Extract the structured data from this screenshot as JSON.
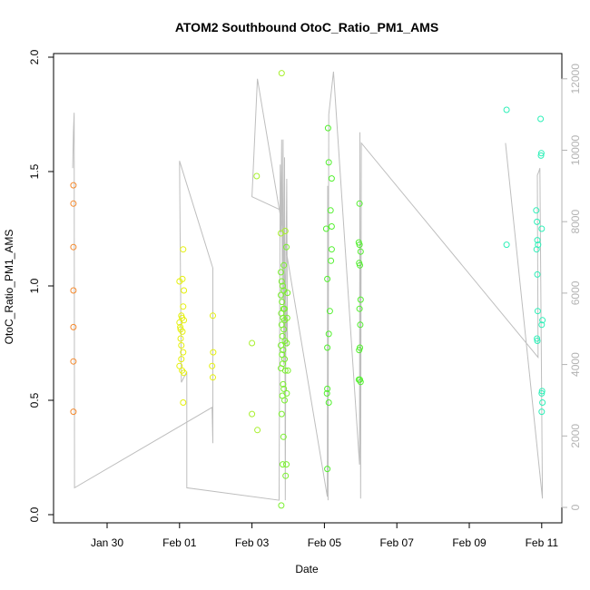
{
  "chart_data": {
    "type": "scatter",
    "title": "ATOM2 Southbound OtoC_Ratio_PM1_AMS",
    "xlabel": "Date",
    "ylabel": "OtoC_Ratio_PM1_AMS",
    "x_unit": "day",
    "x_reference_date": "2017-01-30",
    "x_ticks": [
      {
        "x": 0,
        "label": "Jan 30"
      },
      {
        "x": 2,
        "label": "Feb 01"
      },
      {
        "x": 4,
        "label": "Feb 03"
      },
      {
        "x": 6,
        "label": "Feb 05"
      },
      {
        "x": 8,
        "label": "Feb 07"
      },
      {
        "x": 10,
        "label": "Feb 09"
      },
      {
        "x": 12,
        "label": "Feb 11"
      }
    ],
    "xlim": [
      -1.44,
      12.56
    ],
    "ylim": [
      -0.02,
      2.0
    ],
    "y_ticks": [
      0.0,
      0.5,
      1.0,
      1.5,
      2.0
    ],
    "y_tick_labels": [
      "0.0",
      "0.5",
      "1.0",
      "1.5",
      "2.0"
    ],
    "right_axis": {
      "lim": [
        -190,
        12400
      ],
      "ticks": [
        0,
        2000,
        4000,
        6000,
        8000,
        10000,
        12000
      ],
      "tick_labels": [
        "0",
        "2000",
        "4000",
        "6000",
        "8000",
        "10000",
        "12000"
      ],
      "color": "#b3b3b3"
    },
    "grid": false,
    "series": [
      {
        "color": "#f58a2e",
        "points": [
          {
            "x": -0.93,
            "y": 1.44
          },
          {
            "x": -0.93,
            "y": 1.36
          },
          {
            "x": -0.93,
            "y": 1.17
          },
          {
            "x": -0.93,
            "y": 0.98
          },
          {
            "x": -0.93,
            "y": 0.82
          },
          {
            "x": -0.93,
            "y": 0.67
          },
          {
            "x": -0.93,
            "y": 0.45
          }
        ]
      },
      {
        "color": "#e5f00e",
        "points": [
          {
            "x": 2.0,
            "y": 1.02
          },
          {
            "x": 2.08,
            "y": 1.03
          },
          {
            "x": 2.1,
            "y": 1.16
          },
          {
            "x": 2.12,
            "y": 0.98
          },
          {
            "x": 2.1,
            "y": 0.91
          },
          {
            "x": 2.05,
            "y": 0.87
          },
          {
            "x": 2.07,
            "y": 0.86
          },
          {
            "x": 2.12,
            "y": 0.85
          },
          {
            "x": 2.0,
            "y": 0.84
          },
          {
            "x": 2.02,
            "y": 0.82
          },
          {
            "x": 2.03,
            "y": 0.81
          },
          {
            "x": 2.08,
            "y": 0.8
          },
          {
            "x": 2.03,
            "y": 0.77
          },
          {
            "x": 2.05,
            "y": 0.74
          },
          {
            "x": 2.1,
            "y": 0.71
          },
          {
            "x": 2.05,
            "y": 0.68
          },
          {
            "x": 2.0,
            "y": 0.65
          },
          {
            "x": 2.07,
            "y": 0.63
          },
          {
            "x": 2.12,
            "y": 0.62
          },
          {
            "x": 2.1,
            "y": 0.49
          },
          {
            "x": 2.92,
            "y": 0.87
          },
          {
            "x": 2.93,
            "y": 0.71
          },
          {
            "x": 2.9,
            "y": 0.65
          },
          {
            "x": 2.92,
            "y": 0.6
          }
        ]
      },
      {
        "color": "#a8f02e",
        "points": [
          {
            "x": 4.0,
            "y": 0.75
          },
          {
            "x": 4.0,
            "y": 0.44
          },
          {
            "x": 4.13,
            "y": 1.48
          },
          {
            "x": 4.15,
            "y": 0.37
          },
          {
            "x": 4.82,
            "y": 1.93
          },
          {
            "x": 4.8,
            "y": 1.23
          },
          {
            "x": 4.92,
            "y": 1.24
          }
        ]
      },
      {
        "color": "#7af02e",
        "points": [
          {
            "x": 4.8,
            "y": 1.06
          },
          {
            "x": 4.82,
            "y": 1.02
          },
          {
            "x": 4.85,
            "y": 1.0
          },
          {
            "x": 4.88,
            "y": 0.98
          },
          {
            "x": 4.8,
            "y": 0.96
          },
          {
            "x": 4.83,
            "y": 0.93
          },
          {
            "x": 4.87,
            "y": 0.9
          },
          {
            "x": 4.81,
            "y": 0.88
          },
          {
            "x": 4.86,
            "y": 0.86
          },
          {
            "x": 4.9,
            "y": 0.85
          },
          {
            "x": 4.82,
            "y": 0.83
          },
          {
            "x": 4.88,
            "y": 0.81
          },
          {
            "x": 4.84,
            "y": 0.78
          },
          {
            "x": 4.91,
            "y": 0.76
          },
          {
            "x": 4.8,
            "y": 0.74
          },
          {
            "x": 4.86,
            "y": 0.72
          },
          {
            "x": 4.83,
            "y": 0.7
          },
          {
            "x": 4.9,
            "y": 0.68
          },
          {
            "x": 4.85,
            "y": 0.66
          },
          {
            "x": 4.8,
            "y": 0.64
          },
          {
            "x": 4.92,
            "y": 0.63
          },
          {
            "x": 4.86,
            "y": 0.57
          },
          {
            "x": 4.88,
            "y": 0.55
          },
          {
            "x": 4.84,
            "y": 0.52
          },
          {
            "x": 4.9,
            "y": 0.5
          },
          {
            "x": 4.82,
            "y": 0.44
          },
          {
            "x": 4.87,
            "y": 0.34
          },
          {
            "x": 4.85,
            "y": 0.22
          },
          {
            "x": 4.95,
            "y": 0.22
          },
          {
            "x": 4.93,
            "y": 0.17
          },
          {
            "x": 4.81,
            "y": 0.04
          },
          {
            "x": 4.95,
            "y": 1.17
          },
          {
            "x": 4.98,
            "y": 0.97
          },
          {
            "x": 4.97,
            "y": 0.86
          },
          {
            "x": 4.96,
            "y": 0.75
          },
          {
            "x": 4.99,
            "y": 0.63
          },
          {
            "x": 4.96,
            "y": 0.53
          },
          {
            "x": 4.88,
            "y": 1.09
          },
          {
            "x": 4.9,
            "y": 0.9
          }
        ]
      },
      {
        "color": "#52f02e",
        "points": [
          {
            "x": 6.1,
            "y": 1.69
          },
          {
            "x": 6.12,
            "y": 1.54
          },
          {
            "x": 6.2,
            "y": 1.47
          },
          {
            "x": 6.17,
            "y": 1.33
          },
          {
            "x": 6.05,
            "y": 1.25
          },
          {
            "x": 6.2,
            "y": 1.26
          },
          {
            "x": 6.2,
            "y": 1.16
          },
          {
            "x": 6.18,
            "y": 1.11
          },
          {
            "x": 6.08,
            "y": 1.03
          },
          {
            "x": 6.15,
            "y": 0.89
          },
          {
            "x": 6.12,
            "y": 0.79
          },
          {
            "x": 6.08,
            "y": 0.73
          },
          {
            "x": 6.08,
            "y": 0.55
          },
          {
            "x": 6.07,
            "y": 0.53
          },
          {
            "x": 6.12,
            "y": 0.49
          },
          {
            "x": 6.08,
            "y": 0.2
          },
          {
            "x": 6.97,
            "y": 1.36
          },
          {
            "x": 6.95,
            "y": 1.19
          },
          {
            "x": 6.97,
            "y": 1.18
          },
          {
            "x": 7.0,
            "y": 1.15
          },
          {
            "x": 6.96,
            "y": 1.1
          },
          {
            "x": 6.98,
            "y": 1.09
          },
          {
            "x": 7.0,
            "y": 0.94
          },
          {
            "x": 6.97,
            "y": 0.9
          },
          {
            "x": 6.99,
            "y": 0.83
          },
          {
            "x": 6.98,
            "y": 0.73
          },
          {
            "x": 6.96,
            "y": 0.72
          },
          {
            "x": 6.95,
            "y": 0.59
          },
          {
            "x": 6.98,
            "y": 0.59
          },
          {
            "x": 7.0,
            "y": 0.58
          }
        ]
      },
      {
        "color": "#2ef0b8",
        "points": [
          {
            "x": 11.03,
            "y": 1.77
          },
          {
            "x": 11.03,
            "y": 1.18
          },
          {
            "x": 11.97,
            "y": 1.73
          },
          {
            "x": 11.99,
            "y": 1.58
          },
          {
            "x": 11.98,
            "y": 1.57
          },
          {
            "x": 11.85,
            "y": 1.33
          },
          {
            "x": 11.87,
            "y": 1.28
          },
          {
            "x": 12.0,
            "y": 1.25
          },
          {
            "x": 11.88,
            "y": 1.2
          },
          {
            "x": 11.9,
            "y": 1.18
          },
          {
            "x": 11.86,
            "y": 1.16
          },
          {
            "x": 11.88,
            "y": 1.05
          },
          {
            "x": 11.89,
            "y": 0.89
          },
          {
            "x": 12.02,
            "y": 0.85
          },
          {
            "x": 12.0,
            "y": 0.83
          },
          {
            "x": 11.87,
            "y": 0.77
          },
          {
            "x": 11.88,
            "y": 0.76
          },
          {
            "x": 12.01,
            "y": 0.54
          },
          {
            "x": 12.0,
            "y": 0.53
          },
          {
            "x": 12.02,
            "y": 0.49
          },
          {
            "x": 12.0,
            "y": 0.45
          }
        ]
      }
    ],
    "secondary_line": {
      "color": "#bebebe",
      "axis": "right",
      "points": [
        {
          "x": -0.95,
          "y": 9500
        },
        {
          "x": -0.93,
          "y": 10500
        },
        {
          "x": -0.91,
          "y": 11050
        },
        {
          "x": -0.9,
          "y": 550
        },
        {
          "x": 2.9,
          "y": 2800
        },
        {
          "x": 2.9,
          "y": 2750
        },
        {
          "x": 2.92,
          "y": 1800
        },
        {
          "x": 2.92,
          "y": 6700
        },
        {
          "x": 2.0,
          "y": 9700
        },
        {
          "x": 2.05,
          "y": 3500
        },
        {
          "x": 2.2,
          "y": 3800
        },
        {
          "x": 2.2,
          "y": 550
        },
        {
          "x": 4.75,
          "y": 200
        },
        {
          "x": 4.78,
          "y": 9600
        },
        {
          "x": 4.8,
          "y": 7700
        },
        {
          "x": 4.82,
          "y": 10300
        },
        {
          "x": 4.84,
          "y": 5800
        },
        {
          "x": 4.86,
          "y": 10300
        },
        {
          "x": 4.88,
          "y": 4000
        },
        {
          "x": 4.9,
          "y": 9800
        },
        {
          "x": 4.92,
          "y": 200
        },
        {
          "x": 4.94,
          "y": 7000
        },
        {
          "x": 4.96,
          "y": 9200
        },
        {
          "x": 4.98,
          "y": 4500
        },
        {
          "x": 4.85,
          "y": 8300
        },
        {
          "x": 4.0,
          "y": 8700
        },
        {
          "x": 4.15,
          "y": 12000
        },
        {
          "x": 6.08,
          "y": 300
        },
        {
          "x": 6.09,
          "y": 9000
        },
        {
          "x": 6.1,
          "y": 200
        },
        {
          "x": 6.12,
          "y": 11000
        },
        {
          "x": 6.25,
          "y": 12200
        },
        {
          "x": 6.97,
          "y": 1200
        },
        {
          "x": 6.98,
          "y": 10500
        },
        {
          "x": 7.0,
          "y": 250
        },
        {
          "x": 7.02,
          "y": 10200
        },
        {
          "x": 11.9,
          "y": 4200
        },
        {
          "x": 11.88,
          "y": 9300
        },
        {
          "x": 11.92,
          "y": 9400
        },
        {
          "x": 11.95,
          "y": 9500
        },
        {
          "x": 12.02,
          "y": 250
        },
        {
          "x": 11.0,
          "y": 10200
        }
      ]
    }
  }
}
